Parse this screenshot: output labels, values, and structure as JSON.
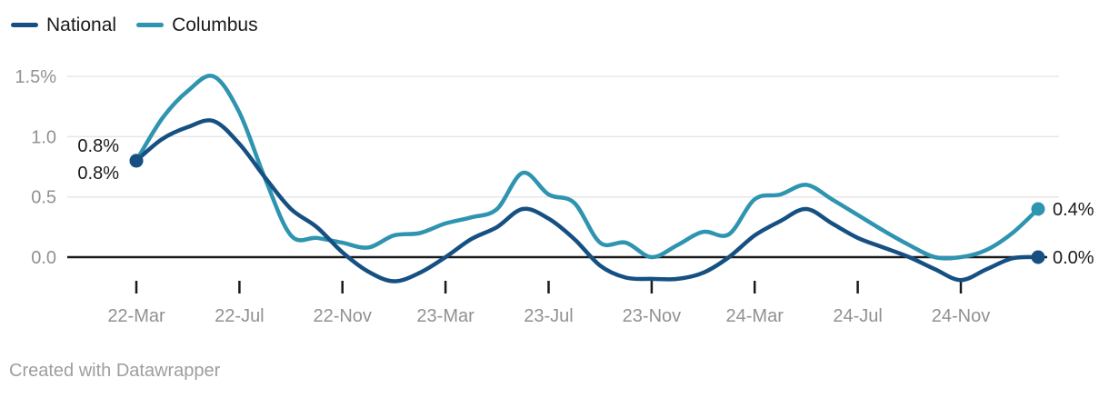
{
  "legend": {
    "items": [
      {
        "label": "National",
        "color": "#165082"
      },
      {
        "label": "Columbus",
        "color": "#2e94b0"
      }
    ]
  },
  "attribution": "Created with Datawrapper",
  "colors": {
    "background": "#ffffff",
    "grid": "#e7e7e7",
    "zero_line": "#1a1a1a",
    "tick_mark": "#1a1a1a",
    "axis_text": "#919191",
    "value_label_text": "#1a1a1a",
    "national": "#165082",
    "columbus": "#2e94b0"
  },
  "chart_data": {
    "type": "line",
    "unit": "%",
    "title": "",
    "legend_position": "top-left",
    "grid": true,
    "categories": [
      "22-Mar",
      "22-Apr",
      "22-May",
      "22-Jun",
      "22-Jul",
      "22-Aug",
      "22-Sep",
      "22-Oct",
      "22-Nov",
      "22-Dec",
      "23-Jan",
      "23-Feb",
      "23-Mar",
      "23-Apr",
      "23-May",
      "23-Jun",
      "23-Jul",
      "23-Aug",
      "23-Sep",
      "23-Oct",
      "23-Nov",
      "23-Dec",
      "24-Jan",
      "24-Feb",
      "24-Mar",
      "24-Apr",
      "24-May",
      "24-Jun",
      "24-Jul",
      "24-Aug",
      "24-Sep",
      "24-Oct",
      "24-Nov",
      "24-Dec",
      "25-Jan",
      "25-Feb"
    ],
    "series": [
      {
        "name": "National",
        "color": "#165082",
        "values": [
          0.8,
          0.98,
          1.08,
          1.13,
          0.94,
          0.66,
          0.4,
          0.25,
          0.04,
          -0.12,
          -0.2,
          -0.13,
          0.0,
          0.15,
          0.25,
          0.4,
          0.32,
          0.15,
          -0.07,
          -0.17,
          -0.18,
          -0.18,
          -0.13,
          0.0,
          0.18,
          0.3,
          0.4,
          0.28,
          0.16,
          0.08,
          0.0,
          -0.1,
          -0.19,
          -0.1,
          -0.01,
          0.0
        ]
      },
      {
        "name": "Columbus",
        "color": "#2e94b0",
        "values": [
          0.8,
          1.15,
          1.38,
          1.5,
          1.2,
          0.65,
          0.18,
          0.16,
          0.12,
          0.08,
          0.18,
          0.2,
          0.28,
          0.33,
          0.4,
          0.7,
          0.52,
          0.45,
          0.12,
          0.12,
          0.0,
          0.1,
          0.21,
          0.19,
          0.48,
          0.52,
          0.6,
          0.48,
          0.35,
          0.22,
          0.1,
          0.0,
          0.0,
          0.06,
          0.2,
          0.4
        ]
      }
    ],
    "y_axis": {
      "range": [
        -0.25,
        1.6
      ],
      "ticks": [
        {
          "value": 1.5,
          "label": "1.5%"
        },
        {
          "value": 1.0,
          "label": "1.0"
        },
        {
          "value": 0.5,
          "label": "0.5"
        },
        {
          "value": 0.0,
          "label": "0.0"
        }
      ]
    },
    "x_axis": {
      "ticks": [
        {
          "index": 0,
          "label": "22-Mar"
        },
        {
          "index": 4,
          "label": "22-Jul"
        },
        {
          "index": 8,
          "label": "22-Nov"
        },
        {
          "index": 12,
          "label": "23-Mar"
        },
        {
          "index": 16,
          "label": "23-Jul"
        },
        {
          "index": 20,
          "label": "23-Nov"
        },
        {
          "index": 24,
          "label": "24-Mar"
        },
        {
          "index": 28,
          "label": "24-Jul"
        },
        {
          "index": 32,
          "label": "24-Nov"
        }
      ]
    },
    "annotations": {
      "start": [
        {
          "series": "Columbus",
          "text": "0.8%"
        },
        {
          "series": "National",
          "text": "0.8%"
        }
      ],
      "end": [
        {
          "series": "Columbus",
          "text": "0.4%"
        },
        {
          "series": "National",
          "text": "0.0%"
        }
      ]
    }
  }
}
